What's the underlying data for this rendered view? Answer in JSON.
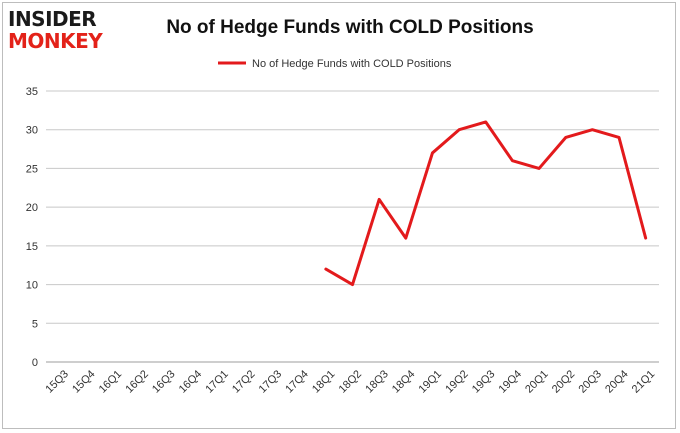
{
  "logo": {
    "top": "INSIDER",
    "bottom": "MONKEY"
  },
  "chart_data": {
    "type": "line",
    "title": "No of Hedge Funds with COLD Positions",
    "xlabel": "",
    "ylabel": "",
    "categories": [
      "15Q3",
      "15Q4",
      "16Q1",
      "16Q2",
      "16Q3",
      "16Q4",
      "17Q1",
      "17Q2",
      "17Q3",
      "17Q4",
      "18Q1",
      "18Q2",
      "18Q3",
      "18Q4",
      "19Q1",
      "19Q2",
      "19Q3",
      "19Q4",
      "20Q1",
      "20Q2",
      "20Q3",
      "20Q4",
      "21Q1"
    ],
    "series": [
      {
        "name": "No of Hedge Funds with COLD Positions",
        "color": "#e31a1c",
        "values": [
          null,
          null,
          null,
          null,
          null,
          null,
          null,
          null,
          null,
          null,
          12,
          10,
          21,
          16,
          27,
          30,
          31,
          26,
          25,
          29,
          30,
          29,
          16
        ]
      }
    ],
    "ylim": [
      0,
      35
    ],
    "yticks": [
      0,
      5,
      10,
      15,
      20,
      25,
      30,
      35
    ],
    "grid": true,
    "legend": "top-center"
  }
}
